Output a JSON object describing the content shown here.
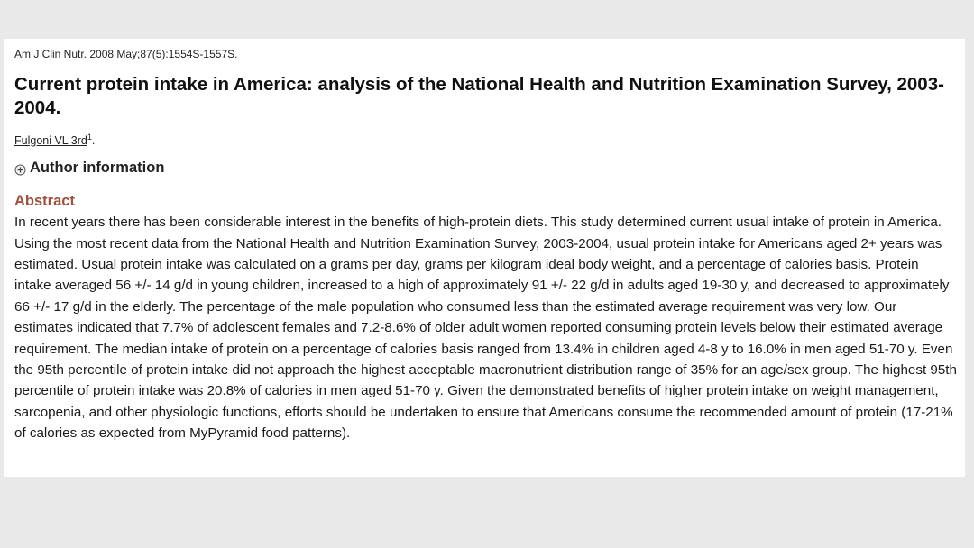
{
  "citation": {
    "journal": "Am J Clin Nutr.",
    "details": " 2008 May;87(5):1554S-1557S."
  },
  "title": "Current protein intake in America: analysis of the National Health and Nutrition Examination Survey, 2003-2004.",
  "author": {
    "name": "Fulgoni VL 3rd",
    "affiliation_mark": "1",
    "suffix": "."
  },
  "author_information_label": "Author information",
  "abstract": {
    "heading": "Abstract",
    "text": "In recent years there has been considerable interest in the benefits of high-protein diets. This study determined current usual intake of protein in America. Using the most recent data from the National Health and Nutrition Examination Survey, 2003-2004, usual protein intake for Americans aged 2+ years was estimated. Usual protein intake was calculated on a grams per day, grams per kilogram ideal body weight, and a percentage of calories basis. Protein intake averaged 56 +/- 14 g/d in young children, increased to a high of approximately 91 +/- 22 g/d in adults aged 19-30 y, and decreased to approximately 66 +/- 17 g/d in the elderly. The percentage of the male population who consumed less than the estimated average requirement was very low. Our estimates indicated that 7.7% of adolescent females and 7.2-8.6% of older adult women reported consuming protein levels below their estimated average requirement. The median intake of protein on a percentage of calories basis ranged from 13.4% in children aged 4-8 y to 16.0% in men aged 51-70 y. Even the 95th percentile of protein intake did not approach the highest acceptable macronutrient distribution range of 35% for an age/sex group. The highest 95th percentile of protein intake was 20.8% of calories in men aged 51-70 y. Given the demonstrated benefits of higher protein intake on weight management, sarcopenia, and other physiologic functions, efforts should be undertaken to ensure that Americans consume the recommended amount of protein (17-21% of calories as expected from MyPyramid food patterns)."
  },
  "colors": {
    "abstract_heading": "#a0503c",
    "background": "#e9e9e9",
    "card": "#ffffff"
  },
  "icons": {
    "expand": "plus-circle-icon"
  }
}
